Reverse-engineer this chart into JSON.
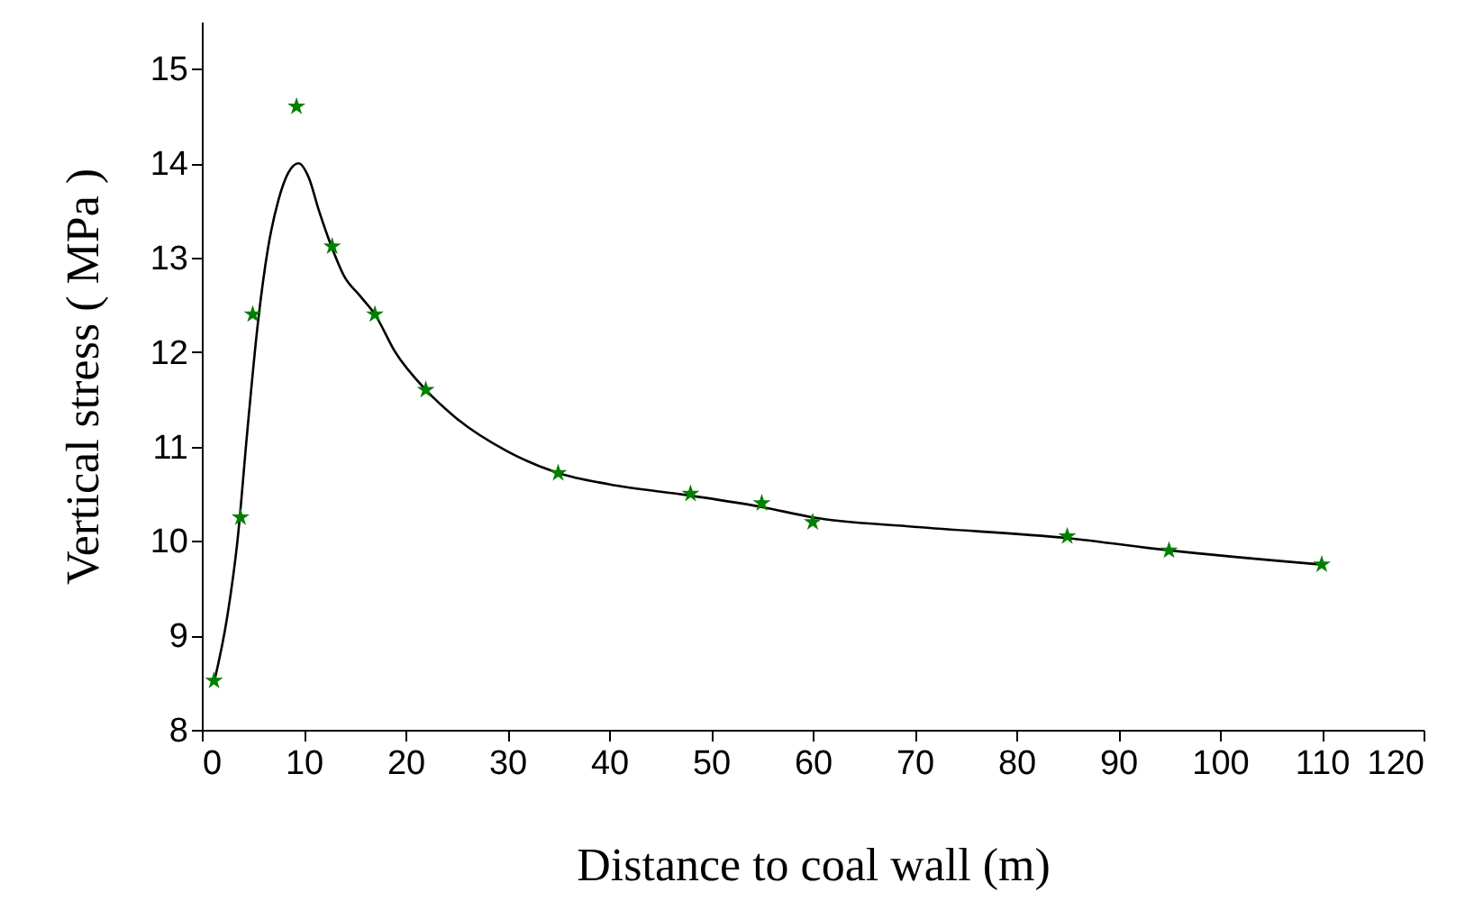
{
  "chart_data": {
    "type": "scatter",
    "xlabel": "Distance to coal wall (m)",
    "ylabel": "Vertical stress ( MPa )",
    "xlim": [
      0,
      120
    ],
    "xticks": [
      0,
      10,
      20,
      30,
      40,
      50,
      60,
      70,
      80,
      90,
      100,
      110,
      120
    ],
    "ylim": [
      8,
      15.5
    ],
    "yticks": [
      8,
      9,
      10,
      11,
      12,
      13,
      14,
      15
    ],
    "grid": false,
    "series": [
      {
        "type": "line",
        "color": "#000000",
        "marker": "none",
        "line_style": "solid",
        "x": [
          1.2,
          2.5,
          3.5,
          4.5,
          5.5,
          6.5,
          7.5,
          8.5,
          9.5,
          10.5,
          11.5,
          12.8,
          14,
          15.5,
          17,
          19,
          22,
          25,
          30,
          35,
          40,
          48,
          55,
          60,
          70,
          85,
          95,
          110
        ],
        "values": [
          8.5,
          9.2,
          10.0,
          11.2,
          12.3,
          13.1,
          13.6,
          13.9,
          14.0,
          13.85,
          13.5,
          13.1,
          12.8,
          12.6,
          12.4,
          12.0,
          11.6,
          11.3,
          10.95,
          10.72,
          10.6,
          10.48,
          10.36,
          10.25,
          10.15,
          10.03,
          9.9,
          9.75
        ]
      },
      {
        "color": "#008000",
        "marker": "star",
        "x": [
          1.2,
          3.8,
          5,
          9.3,
          12.8,
          17,
          22,
          35,
          48,
          55,
          60,
          85,
          95,
          110
        ],
        "values": [
          8.52,
          10.25,
          12.4,
          14.6,
          13.12,
          12.4,
          11.6,
          10.72,
          10.5,
          10.4,
          10.2,
          10.05,
          9.9,
          9.75
        ]
      }
    ]
  }
}
